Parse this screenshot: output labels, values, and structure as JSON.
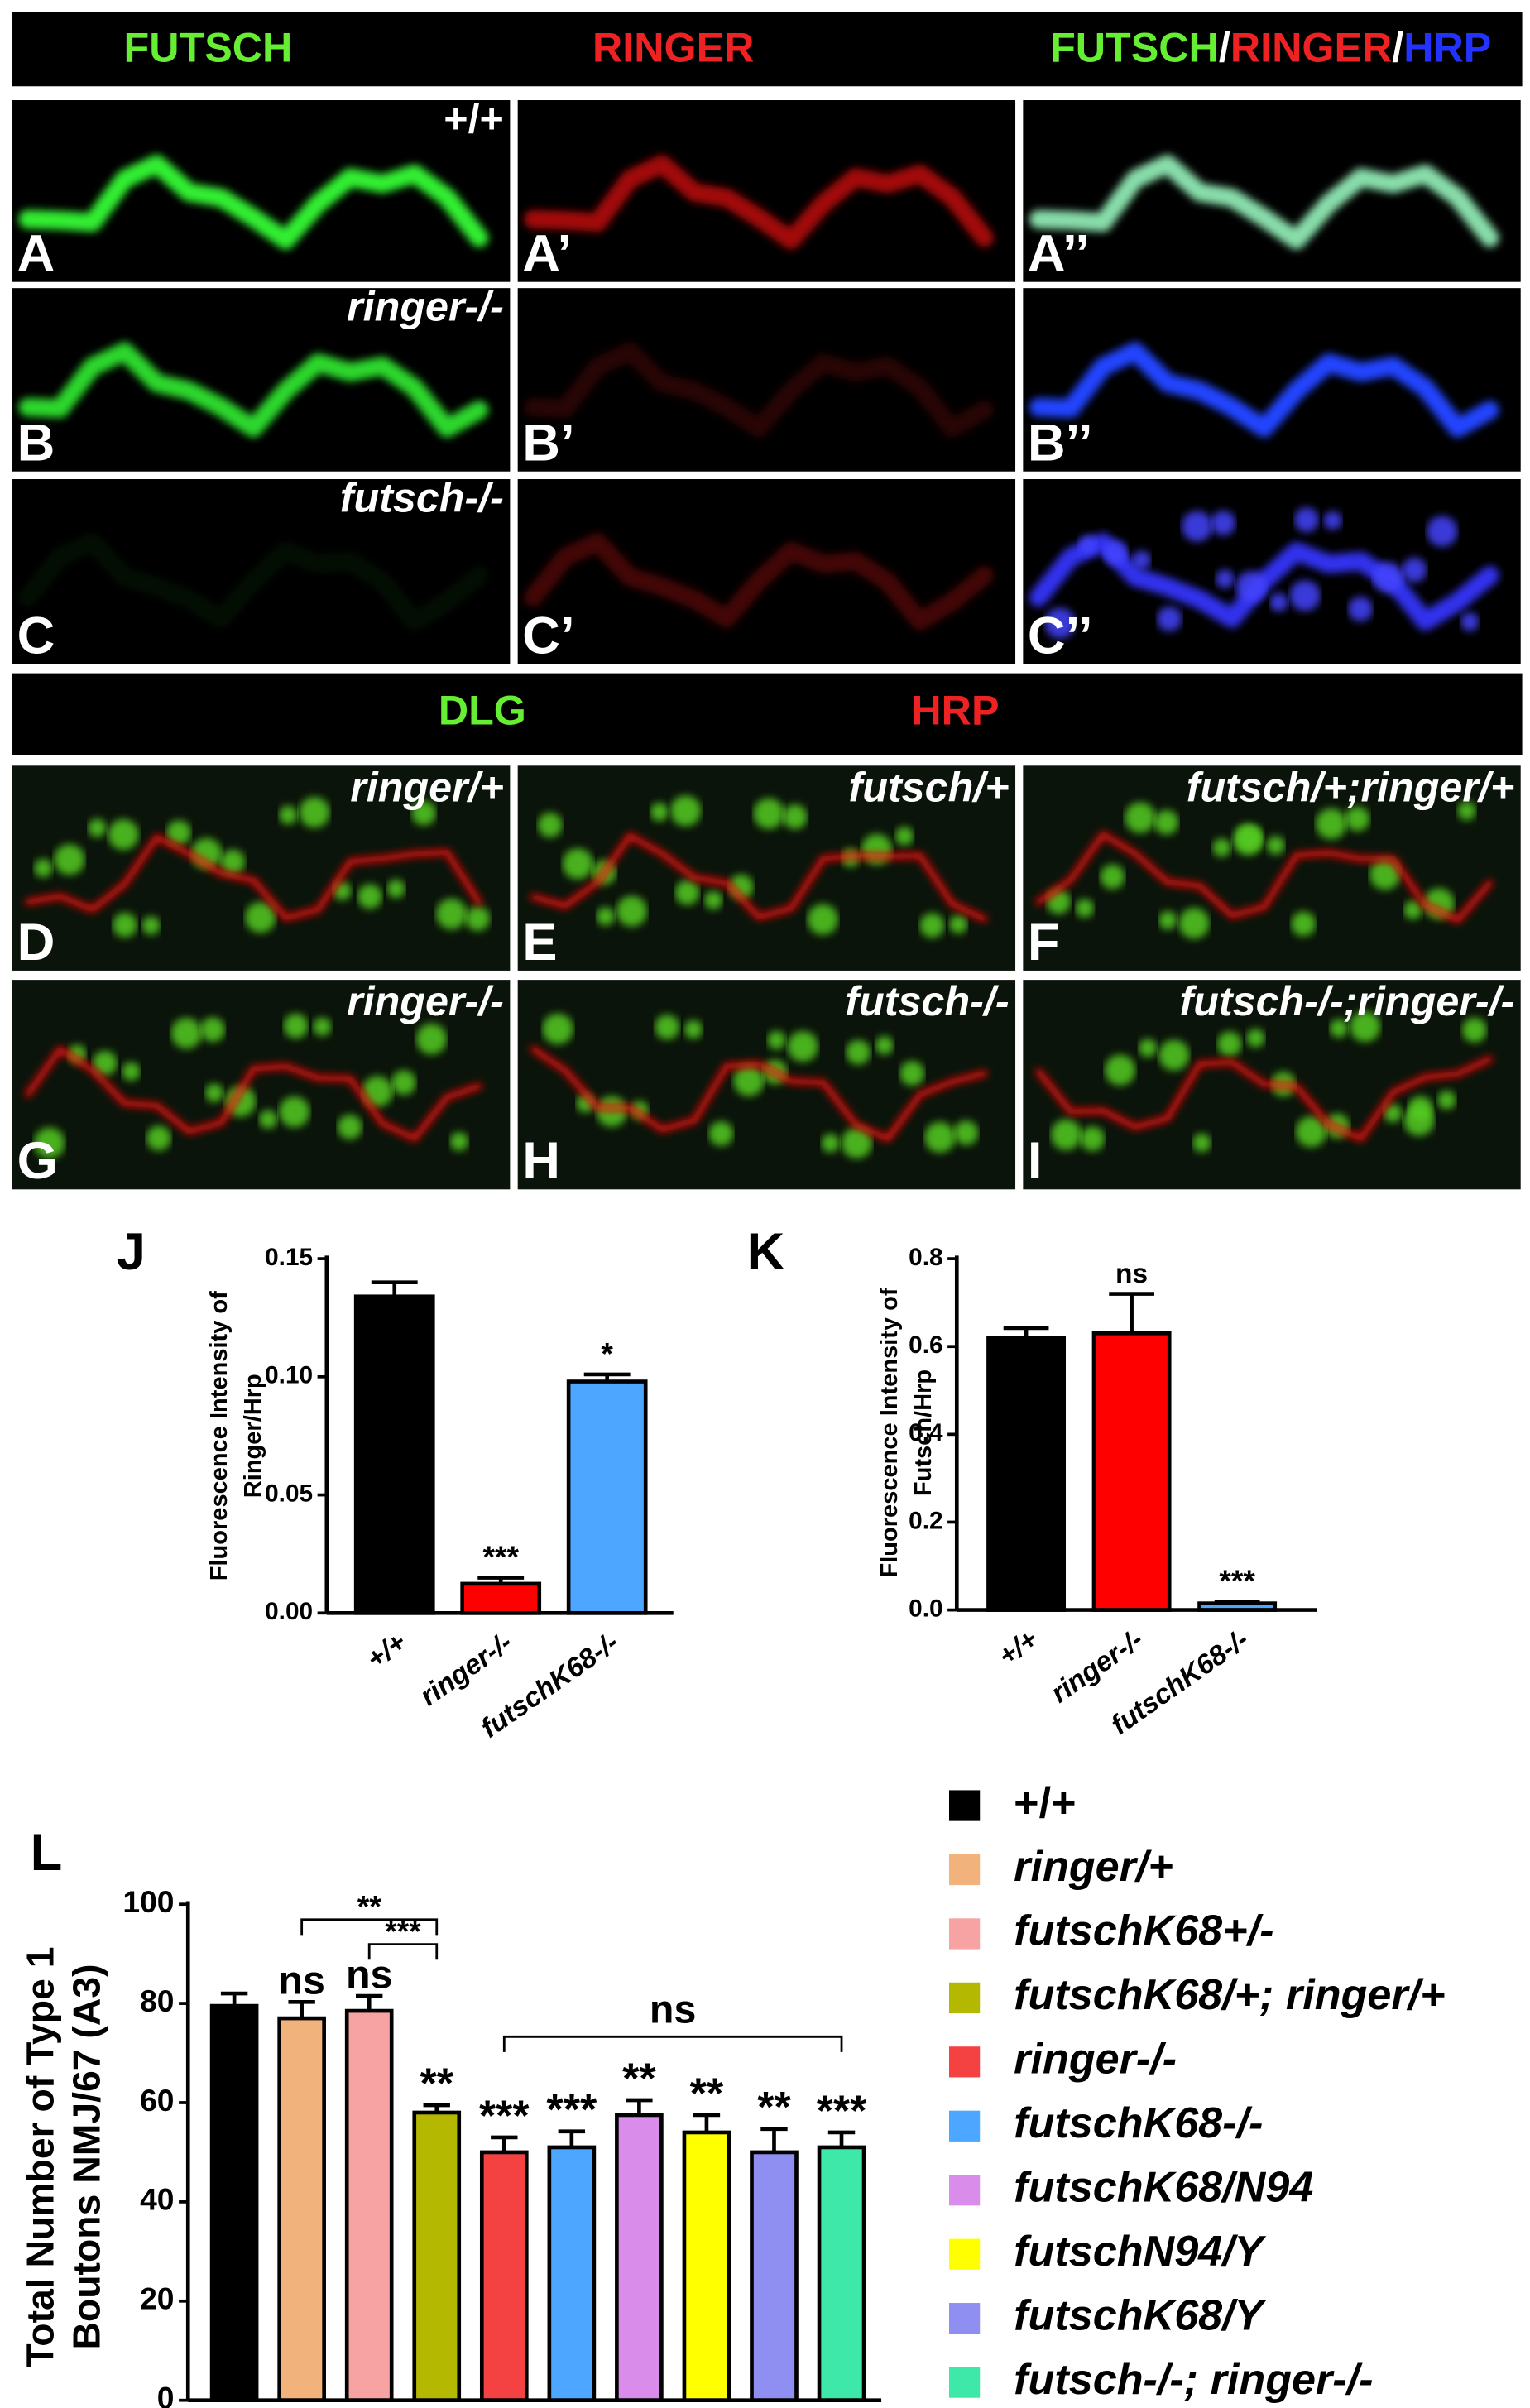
{
  "figure_panels": {
    "header1": [
      {
        "text": "FUTSCH",
        "color": "#66ee33"
      },
      {
        "text": "RINGER",
        "color": "#ee2222"
      }
    ],
    "header1_merge": [
      {
        "text": "FUTSCH",
        "color": "#66ee33"
      },
      {
        "text": "/",
        "color": "#ffffff"
      },
      {
        "text": "RINGER",
        "color": "#ee2222"
      },
      {
        "text": "/",
        "color": "#ffffff"
      },
      {
        "text": "HRP",
        "color": "#2233ff"
      }
    ],
    "rows1": [
      {
        "genotype": "+/+",
        "labels": [
          "A",
          "A’",
          "A’’"
        ]
      },
      {
        "genotype": "ringer-/-",
        "labels": [
          "B",
          "B’",
          "B’’"
        ]
      },
      {
        "genotype": "futsch-/-",
        "labels": [
          "C",
          "C’",
          "C’’"
        ]
      }
    ],
    "header2": [
      {
        "text": "DLG",
        "color": "#66ee33"
      },
      {
        "text": "HRP",
        "color": "#ee2222"
      }
    ],
    "rows2": [
      [
        {
          "label": "D",
          "genotype": "ringer/+"
        },
        {
          "label": "E",
          "genotype": "futsch/+"
        },
        {
          "label": "F",
          "genotype": "futsch/+;ringer/+"
        }
      ],
      [
        {
          "label": "G",
          "genotype": "ringer-/-"
        },
        {
          "label": "H",
          "genotype": "futsch-/-"
        },
        {
          "label": "I",
          "genotype": "futsch-/-;ringer-/-"
        }
      ]
    ]
  },
  "chart_data": [
    {
      "type": "bar",
      "panel": "J",
      "ylabel": [
        "Fluorescence Intensity of",
        "Ringer/Hrp"
      ],
      "categories": [
        "+/+",
        "ringer-/-",
        "futschK68-/-"
      ],
      "values": [
        0.134,
        0.0124,
        0.098
      ],
      "errors": [
        0.006,
        0.0026,
        0.003
      ],
      "colors": [
        "#000000",
        "#ff0000",
        "#4da6ff"
      ],
      "significance": [
        null,
        "***",
        "*"
      ],
      "ylim": [
        0,
        0.15
      ],
      "yticks": [
        {
          "value": 0,
          "label": "0.00"
        },
        {
          "value": 0.05,
          "label": "0.05"
        },
        {
          "value": 0.1,
          "label": "0.10"
        },
        {
          "value": 0.15,
          "label": "0.15"
        }
      ]
    },
    {
      "type": "bar",
      "panel": "K",
      "ylabel": [
        "Fluorescence Intensity of",
        "Futsch/Hrp"
      ],
      "categories": [
        "+/+",
        "ringer-/-",
        "futschK68-/-"
      ],
      "values": [
        0.62,
        0.63,
        0.015
      ],
      "errors": [
        0.022,
        0.09,
        0.004
      ],
      "colors": [
        "#000000",
        "#ff0000",
        "#4da6ff"
      ],
      "significance": [
        null,
        "ns",
        "***"
      ],
      "ylim": [
        0,
        0.8
      ],
      "yticks": [
        {
          "value": 0,
          "label": "0.0"
        },
        {
          "value": 0.2,
          "label": "0.2"
        },
        {
          "value": 0.4,
          "label": "0.4"
        },
        {
          "value": 0.6,
          "label": "0.6"
        },
        {
          "value": 0.8,
          "label": "0.8"
        }
      ]
    },
    {
      "type": "bar",
      "panel": "L",
      "ylabel": [
        "Total Number of Type 1",
        "Boutons NMJ/67 (A3)"
      ],
      "categories": [
        "+/+",
        "ringer/+",
        "futschK68+/-",
        "futschK68/+; ringer/+",
        "ringer-/-",
        "futschK68-/-",
        "futschK68/N94",
        "futschN94/Y",
        "futschK68/Y",
        "futsch-/-; ringer-/-"
      ],
      "values": [
        79.5,
        77,
        78.5,
        58,
        50,
        51,
        57.5,
        54,
        50,
        51
      ],
      "errors": [
        2.5,
        3.3,
        3,
        1.5,
        3,
        3.2,
        3,
        3.5,
        4.7,
        3
      ],
      "colors": [
        "#000000",
        "#f2b27c",
        "#f7a3a3",
        "#b5b800",
        "#f44242",
        "#4da6ff",
        "#d98ce9",
        "#ffff00",
        "#8f8ff2",
        "#3ee8a8"
      ],
      "significance": [
        null,
        "ns",
        "ns",
        "**",
        "***",
        "***",
        "**",
        "**",
        "**",
        "***"
      ],
      "comparisons": [
        {
          "from": "ringer/+",
          "to": "futschK68/+; ringer/+",
          "label": "**"
        },
        {
          "from": "futschK68+/-",
          "to": "futschK68/+; ringer/+",
          "label": "***"
        },
        {
          "from": "ringer-/-",
          "to": "futsch-/-; ringer-/-",
          "label": "ns"
        }
      ],
      "ylim": [
        0,
        100
      ],
      "yticks": [
        0,
        20,
        40,
        60,
        80,
        100
      ]
    }
  ]
}
